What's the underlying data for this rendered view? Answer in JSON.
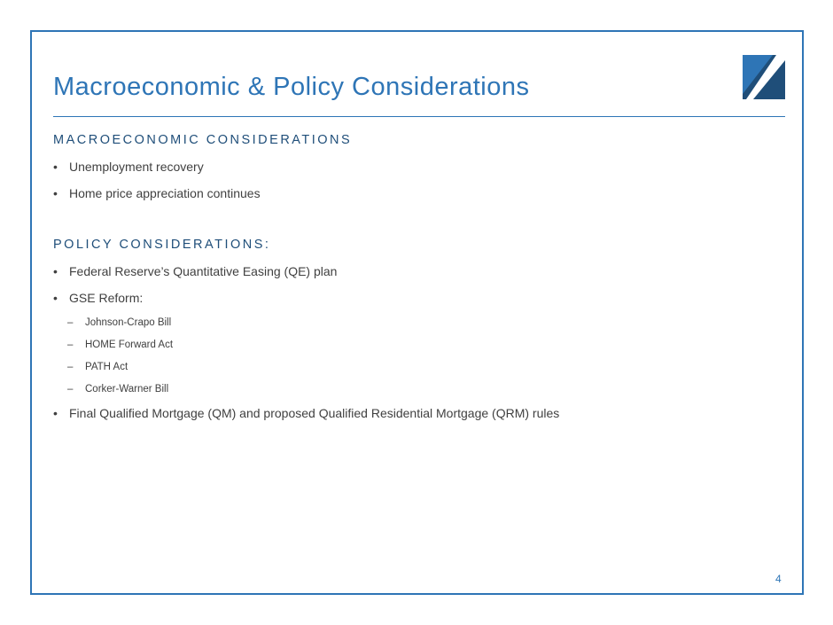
{
  "header": {
    "title": "Macroeconomic & Policy Considerations"
  },
  "sections": [
    {
      "heading": "MACROECONOMIC CONSIDERATIONS",
      "items": [
        {
          "text": "Unemployment recovery",
          "subitems": []
        },
        {
          "text": "Home price appreciation continues",
          "subitems": []
        }
      ]
    },
    {
      "heading": "POLICY CONSIDERATIONS:",
      "items": [
        {
          "text": "Federal Reserve’s Quantitative Easing (QE) plan",
          "subitems": []
        },
        {
          "text": "GSE Reform:",
          "subitems": [
            "Johnson-Crapo Bill",
            "HOME Forward Act",
            "PATH Act",
            "Corker-Warner Bill"
          ]
        },
        {
          "text": "Final Qualified Mortgage (QM) and proposed Qualified Residential Mortgage (QRM) rules",
          "subitems": []
        }
      ]
    }
  ],
  "footer": {
    "page_number": "4"
  }
}
